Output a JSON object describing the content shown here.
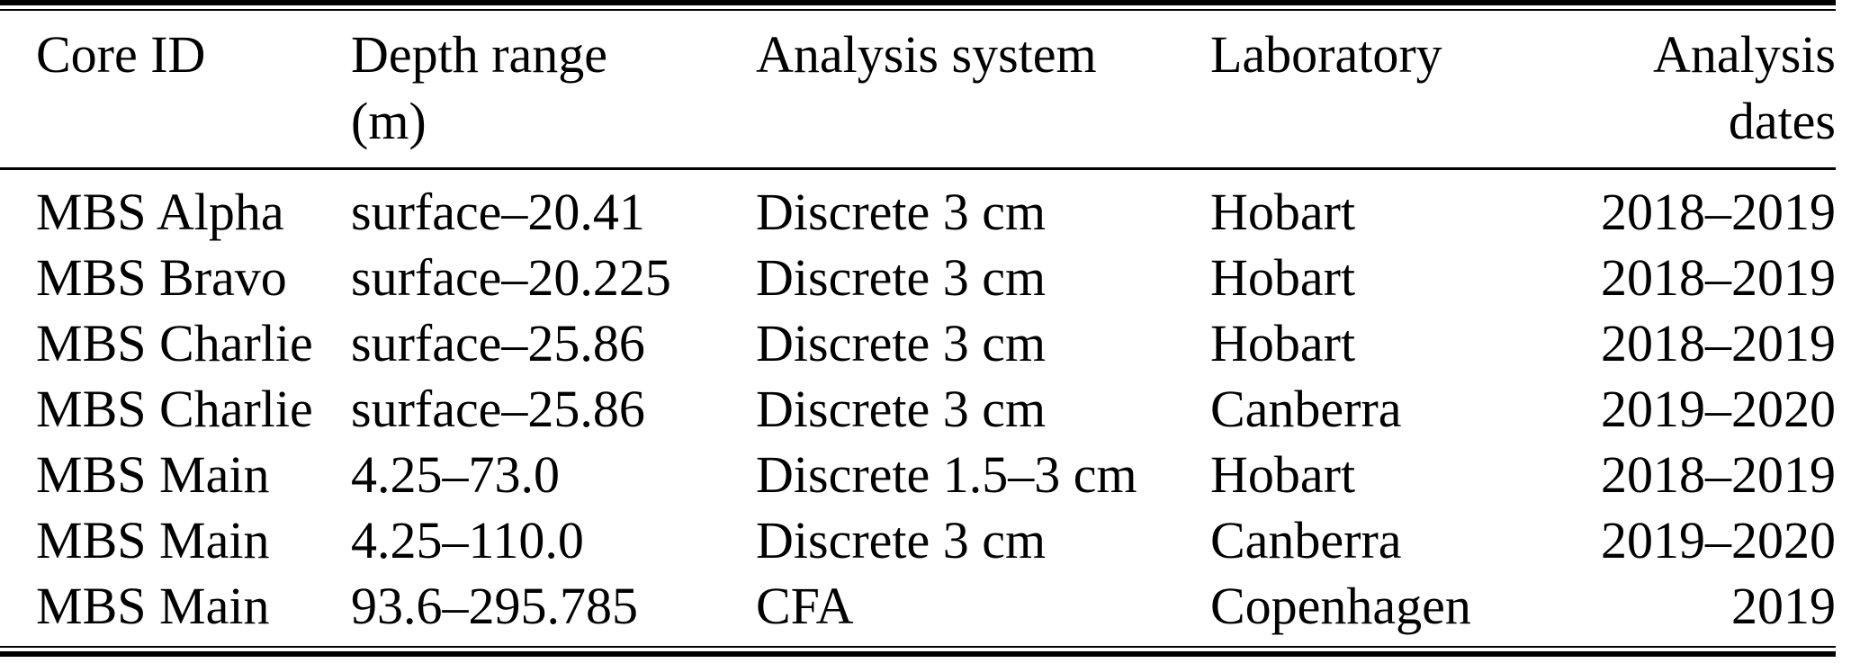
{
  "colors": {
    "background": "#ffffff",
    "text": "#000000",
    "rule": "#000000"
  },
  "table": {
    "headers": [
      {
        "line1": "Core ID",
        "line2": ""
      },
      {
        "line1": "Depth range",
        "line2": "(m)"
      },
      {
        "line1": "Analysis system",
        "line2": ""
      },
      {
        "line1": "Laboratory",
        "line2": ""
      },
      {
        "line1": "Analysis",
        "line2": "dates"
      }
    ],
    "rows": [
      {
        "core_id": "MBS Alpha",
        "depth_range": "surface–20.41",
        "analysis_system": "Discrete 3 cm",
        "laboratory": "Hobart",
        "analysis_dates": "2018–2019"
      },
      {
        "core_id": "MBS Bravo",
        "depth_range": "surface–20.225",
        "analysis_system": "Discrete 3 cm",
        "laboratory": "Hobart",
        "analysis_dates": "2018–2019"
      },
      {
        "core_id": "MBS Charlie",
        "depth_range": "surface–25.86",
        "analysis_system": "Discrete 3 cm",
        "laboratory": "Hobart",
        "analysis_dates": "2018–2019"
      },
      {
        "core_id": "MBS Charlie",
        "depth_range": "surface–25.86",
        "analysis_system": "Discrete 3 cm",
        "laboratory": "Canberra",
        "analysis_dates": "2019–2020"
      },
      {
        "core_id": "MBS Main",
        "depth_range": "4.25–73.0",
        "analysis_system": "Discrete 1.5–3 cm",
        "laboratory": "Hobart",
        "analysis_dates": "2018–2019"
      },
      {
        "core_id": "MBS Main",
        "depth_range": "4.25–110.0",
        "analysis_system": "Discrete 3 cm",
        "laboratory": "Canberra",
        "analysis_dates": "2019–2020"
      },
      {
        "core_id": "MBS Main",
        "depth_range": "93.6–295.785",
        "analysis_system": "CFA",
        "laboratory": "Copenhagen",
        "analysis_dates": "2019"
      }
    ]
  }
}
